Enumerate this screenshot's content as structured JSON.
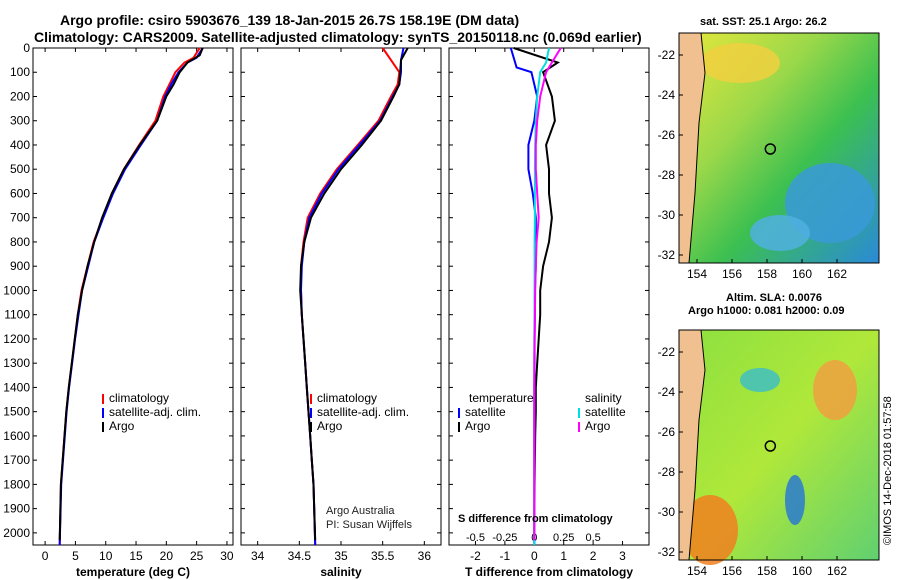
{
  "title_line1": "Argo profile: csiro 5903676_139 18-Jan-2015 26.7S 158.19E (DM data)",
  "title_line2": "Climatology: CARS2009. Satellite-adjusted climatology: synTS_20150118.nc (0.069d earlier)",
  "colors": {
    "climatology": "#ff0000",
    "satellite": "#0000ff",
    "argo": "#000000",
    "sal_diff": "#00e0e0",
    "sal_argo_diff": "#ff00ff"
  },
  "chart_data": [
    {
      "type": "line",
      "name": "temperature",
      "xlabel": "temperature (deg C)",
      "ylabel": "",
      "xlim": [
        -2,
        31
      ],
      "ylim": [
        2050,
        0
      ],
      "xticks": [
        0,
        5,
        10,
        15,
        20,
        25,
        30
      ],
      "yticks": [
        0,
        100,
        200,
        300,
        400,
        500,
        600,
        700,
        800,
        900,
        1000,
        1100,
        1200,
        1300,
        1400,
        1500,
        1600,
        1700,
        1800,
        1900,
        2000
      ],
      "ytick_labels": [
        "0",
        "100",
        "200",
        "300",
        "400",
        "500",
        "600",
        "700",
        "800",
        "900",
        "1000",
        "1100",
        "1200",
        "1300",
        "1400",
        "1500",
        "1600",
        "1700",
        "1800",
        "1900",
        "2000"
      ],
      "legend": [
        "climatology",
        "satellite-adj. clim.",
        "Argo"
      ],
      "series": [
        {
          "name": "climatology",
          "color": "#ff0000",
          "x": [
            25.5,
            24.5,
            23,
            21.5,
            20.5,
            19.5,
            18.2,
            15.5,
            13,
            11,
            9.5,
            8,
            7,
            6,
            5.4,
            4.9,
            4.4,
            3.9,
            3.5,
            3.2,
            2.9,
            2.6,
            2.4
          ],
          "y": [
            0,
            40,
            60,
            100,
            150,
            200,
            300,
            400,
            500,
            600,
            700,
            800,
            900,
            1000,
            1100,
            1200,
            1300,
            1400,
            1500,
            1600,
            1700,
            1800,
            2050
          ]
        },
        {
          "name": "satellite-adj. clim.",
          "color": "#0000ff",
          "x": [
            26,
            25,
            23.5,
            22,
            20.8,
            19.8,
            18.5,
            15.8,
            13.2,
            11.2,
            9.6,
            8.1,
            7.1,
            6.1,
            5.5,
            4.95,
            4.45,
            3.95,
            3.55,
            3.25,
            2.95,
            2.65,
            2.4
          ],
          "y": [
            0,
            40,
            60,
            100,
            150,
            200,
            300,
            400,
            500,
            600,
            700,
            800,
            900,
            1000,
            1100,
            1200,
            1300,
            1400,
            1500,
            1600,
            1700,
            1800,
            2050
          ]
        },
        {
          "name": "Argo",
          "color": "#000000",
          "x": [
            26,
            25.5,
            23.5,
            22.2,
            21.2,
            20,
            18.5,
            15.6,
            13,
            11,
            9.4,
            8.1,
            7,
            6.1,
            5.4,
            4.9,
            4.4,
            3.9,
            3.5,
            3.2,
            2.9,
            2.6,
            2.4
          ],
          "y": [
            0,
            30,
            60,
            100,
            150,
            200,
            300,
            400,
            500,
            600,
            700,
            800,
            900,
            1000,
            1100,
            1200,
            1300,
            1400,
            1500,
            1600,
            1700,
            1800,
            2030
          ]
        }
      ]
    },
    {
      "type": "line",
      "name": "salinity",
      "xlabel": "salinity",
      "xlim": [
        33.8,
        36.2
      ],
      "ylim": [
        2050,
        0
      ],
      "xticks": [
        34,
        34.5,
        35,
        35.5,
        36
      ],
      "legend": [
        "climatology",
        "satellite-adj. clim.",
        "Argo"
      ],
      "series": [
        {
          "name": "climatology",
          "color": "#ff0000",
          "x": [
            35.5,
            35.6,
            35.7,
            35.68,
            35.6,
            35.45,
            35.2,
            34.95,
            34.75,
            34.6,
            34.55,
            34.52,
            34.52,
            34.53,
            34.55,
            34.57,
            34.59,
            34.61,
            34.63,
            34.65,
            34.67,
            34.69
          ],
          "y": [
            0,
            50,
            100,
            150,
            200,
            300,
            400,
            500,
            600,
            700,
            800,
            900,
            1000,
            1100,
            1200,
            1300,
            1400,
            1500,
            1600,
            1700,
            1800,
            2050
          ]
        },
        {
          "name": "satellite-adj. clim.",
          "color": "#0000ff",
          "x": [
            35.75,
            35.72,
            35.72,
            35.7,
            35.62,
            35.47,
            35.22,
            34.97,
            34.77,
            34.62,
            34.56,
            34.53,
            34.52,
            34.53,
            34.55,
            34.57,
            34.59,
            34.61,
            34.63,
            34.65,
            34.67,
            34.69
          ],
          "y": [
            0,
            50,
            100,
            150,
            200,
            300,
            400,
            500,
            600,
            700,
            800,
            900,
            1000,
            1100,
            1200,
            1300,
            1400,
            1500,
            1600,
            1700,
            1800,
            2050
          ]
        },
        {
          "name": "Argo",
          "color": "#000000",
          "x": [
            35.8,
            35.72,
            35.71,
            35.7,
            35.63,
            35.48,
            35.25,
            35.0,
            34.8,
            34.64,
            34.56,
            34.52,
            34.51,
            34.53,
            34.55,
            34.57,
            34.59,
            34.61,
            34.63,
            34.65,
            34.67,
            34.69
          ],
          "y": [
            0,
            50,
            100,
            150,
            200,
            300,
            400,
            500,
            600,
            700,
            800,
            900,
            1000,
            1100,
            1200,
            1300,
            1400,
            1500,
            1600,
            1700,
            1800,
            2030
          ]
        }
      ]
    },
    {
      "type": "line",
      "name": "difference from climatology",
      "xlabel": "T difference from climatology",
      "xlabel_top": "S difference from climatology",
      "xlim": [
        -2.9,
        3.9
      ],
      "ylim": [
        2050,
        0
      ],
      "xticks": [
        -2,
        -1,
        0,
        1,
        2,
        3
      ],
      "xtick_labels_top": [
        "-0.5",
        "-0.25",
        "0",
        "0.25",
        "0.5"
      ],
      "legend_left": [
        "temperature",
        "satellite",
        "Argo"
      ],
      "legend_right": [
        "salinity",
        "satellite",
        "Argo"
      ],
      "series": [
        {
          "name": "temperature satellite",
          "color": "#0000ff",
          "x": [
            -0.8,
            -0.6,
            -0.1,
            0.1,
            0,
            -0.2,
            -0.2,
            -0.05,
            0.05,
            0.05,
            0.05,
            0.02,
            0.02,
            0.01,
            0.01,
            0,
            0,
            0,
            0,
            0,
            0
          ],
          "y": [
            0,
            80,
            100,
            200,
            300,
            400,
            500,
            600,
            700,
            800,
            900,
            1000,
            1100,
            1200,
            1300,
            1400,
            1500,
            1600,
            1700,
            1800,
            2050
          ]
        },
        {
          "name": "temperature Argo",
          "color": "#000000",
          "x": [
            -0.7,
            0.8,
            0.3,
            0.6,
            0.7,
            0.4,
            0.5,
            0.5,
            0.6,
            0.5,
            0.3,
            0.2,
            0.2,
            0.15,
            0.1,
            0.05,
            0.05,
            0.03,
            0.02,
            0.01,
            0
          ],
          "y": [
            0,
            60,
            100,
            200,
            300,
            400,
            500,
            600,
            700,
            800,
            900,
            1000,
            1100,
            1200,
            1300,
            1400,
            1500,
            1600,
            1700,
            1800,
            2030
          ]
        },
        {
          "name": "salinity satellite",
          "color": "#00e0e0",
          "x": [
            0.5,
            0.4,
            0.2,
            0.1,
            0.05,
            0.03,
            0.02,
            0.02,
            0.02,
            0.01,
            0.01,
            0.01,
            0.01,
            0,
            0,
            0,
            0,
            0,
            0,
            0,
            0
          ],
          "y": [
            0,
            60,
            100,
            200,
            300,
            400,
            500,
            600,
            700,
            800,
            900,
            1000,
            1100,
            1200,
            1300,
            1400,
            1500,
            1600,
            1700,
            1800,
            2050
          ]
        },
        {
          "name": "salinity Argo",
          "color": "#ff00ff",
          "x": [
            0.9,
            0.6,
            0.4,
            0.2,
            0.1,
            0.05,
            0.05,
            0.1,
            0.15,
            0.08,
            0.05,
            0.03,
            0.02,
            0.01,
            0,
            0,
            0,
            0,
            0,
            0,
            0
          ],
          "y": [
            0,
            60,
            100,
            200,
            300,
            400,
            500,
            600,
            700,
            800,
            900,
            1000,
            1100,
            1200,
            1300,
            1400,
            1500,
            1600,
            1700,
            1800,
            2030
          ]
        }
      ]
    },
    {
      "type": "heatmap",
      "name": "sat. SST map",
      "title": "sat. SST: 25.1 Argo: 26.2",
      "xticks": [
        154,
        156,
        158,
        160,
        162
      ],
      "yticks": [
        -22,
        -24,
        -26,
        -28,
        -30,
        -32
      ],
      "marker": [
        158.19,
        -26.7
      ]
    },
    {
      "type": "heatmap",
      "name": "altimetry SLA map",
      "title": "Altim. SLA: 0.0076",
      "subtitle": "Argo h1000: 0.081 h2000: 0.09",
      "xticks": [
        154,
        156,
        158,
        160,
        162
      ],
      "yticks": [
        -22,
        -24,
        -26,
        -28,
        -30,
        -32
      ],
      "marker": [
        158.19,
        -26.7
      ]
    }
  ],
  "credit_line1": "Argo Australia",
  "credit_line2": "PI: Susan Wijffels",
  "stamp": "©IMOS 14-Dec-2018 01:57:58"
}
